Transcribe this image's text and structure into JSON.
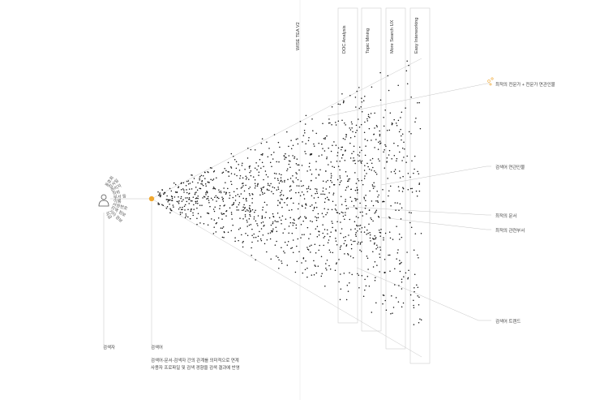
{
  "columns": [
    {
      "label": "WISE TEA V2"
    },
    {
      "label": "DOC Analysis"
    },
    {
      "label": "Topic Mining"
    },
    {
      "label": "More Search UX"
    },
    {
      "label": "Easy Interworking"
    }
  ],
  "outputs": [
    {
      "label": "최적의 전문가 + 전문가 연관인물"
    },
    {
      "label": "검색어 연관인물"
    },
    {
      "label": "최적의 문서"
    },
    {
      "label": "최적의 관련부서"
    },
    {
      "label": "검색어 트렌드"
    }
  ],
  "user_attributes": [
    "동호회",
    "입사일",
    "관리자",
    "직위",
    "부서 등",
    "이름",
    "사원번호",
    "지역 정보",
    "기타 정보",
    "직급"
  ],
  "searcher_label": "검색자",
  "query_label": "검색어",
  "caption": {
    "line1": "검색어-문서-검색자 간의 관계를 의미적으로 연계",
    "line2": "사용자 프로파일 및 검색 경향을 검색 결과에 반영"
  },
  "colors": {
    "accent": "#f0a830",
    "dot": "#111111",
    "line": "#bbbbbb"
  }
}
